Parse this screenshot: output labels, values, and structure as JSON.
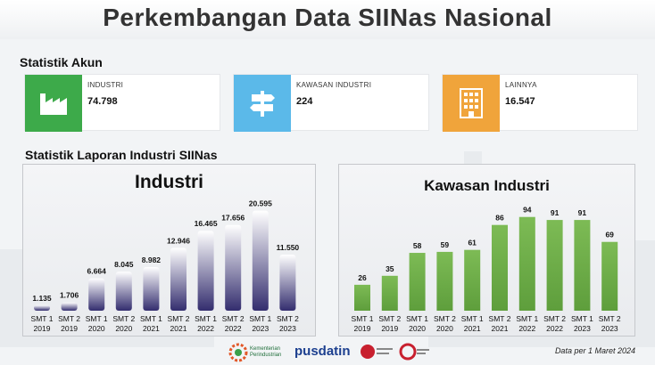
{
  "page": {
    "title": "Perkembangan Data SIINas Nasional"
  },
  "account_stats": {
    "heading": "Statistik Akun",
    "cards": [
      {
        "label": "INDUSTRI",
        "value": "74.798",
        "icon": "factory-icon",
        "color": "#3daa4a"
      },
      {
        "label": "KAWASAN INDUSTRI",
        "value": "224",
        "icon": "signpost-icon",
        "color": "#5bb9e9"
      },
      {
        "label": "LAINNYA",
        "value": "16.547",
        "icon": "building-icon",
        "color": "#f0a43b"
      }
    ]
  },
  "report_stats": {
    "heading": "Statistik Laporan Industri SIINas"
  },
  "chart_data": [
    {
      "type": "bar",
      "title": "Industri",
      "categories": [
        "SMT 1 2019",
        "SMT 2 2019",
        "SMT 1 2020",
        "SMT 2 2020",
        "SMT 1 2021",
        "SMT 2 2021",
        "SMT 1 2022",
        "SMT 2 2022",
        "SMT 1 2023",
        "SMT 2 2023"
      ],
      "category_lines": [
        [
          "SMT 1",
          "2019"
        ],
        [
          "SMT 2",
          "2019"
        ],
        [
          "SMT 1",
          "2020"
        ],
        [
          "SMT 2",
          "2020"
        ],
        [
          "SMT 1",
          "2021"
        ],
        [
          "SMT 2",
          "2021"
        ],
        [
          "SMT 1",
          "2022"
        ],
        [
          "SMT 2",
          "2022"
        ],
        [
          "SMT 1",
          "2023"
        ],
        [
          "SMT 2",
          "2023"
        ]
      ],
      "values": [
        1135,
        1706,
        6664,
        8045,
        8982,
        12946,
        16465,
        17656,
        20595,
        11550
      ],
      "labels": [
        "1.135",
        "1.706",
        "6.664",
        "8.045",
        "8.982",
        "12.946",
        "16.465",
        "17.656",
        "20.595",
        "11.550"
      ],
      "ylim": [
        0,
        22000
      ],
      "color_top": "#ffffff",
      "color_bottom": "#332d6e",
      "grid": false
    },
    {
      "type": "bar",
      "title": "Kawasan Industri",
      "categories": [
        "SMT 1 2019",
        "SMT 2 2019",
        "SMT 1 2020",
        "SMT 2 2020",
        "SMT 1 2021",
        "SMT 2 2021",
        "SMT 1 2022",
        "SMT 2 2022",
        "SMT 1 2023",
        "SMT 2 2023"
      ],
      "category_lines": [
        [
          "SMT 1",
          "2019"
        ],
        [
          "SMT 2",
          "2019"
        ],
        [
          "SMT 1",
          "2020"
        ],
        [
          "SMT 2",
          "2020"
        ],
        [
          "SMT 1",
          "2021"
        ],
        [
          "SMT 2",
          "2021"
        ],
        [
          "SMT 1",
          "2022"
        ],
        [
          "SMT 2",
          "2022"
        ],
        [
          "SMT 1",
          "2023"
        ],
        [
          "SMT 2",
          "2023"
        ]
      ],
      "values": [
        26,
        35,
        58,
        59,
        61,
        86,
        94,
        91,
        91,
        69
      ],
      "labels": [
        "26",
        "35",
        "58",
        "59",
        "61",
        "86",
        "94",
        "91",
        "91",
        "69"
      ],
      "ylim": [
        0,
        100
      ],
      "color_top": "#7dbb55",
      "color_bottom": "#5e9e3c",
      "grid": false
    }
  ],
  "footer": {
    "note": "Data per 1 Maret 2024",
    "logo_kemenperin": "Kementerian Perindustrian",
    "logo_pusdatin": "pusdatin"
  }
}
